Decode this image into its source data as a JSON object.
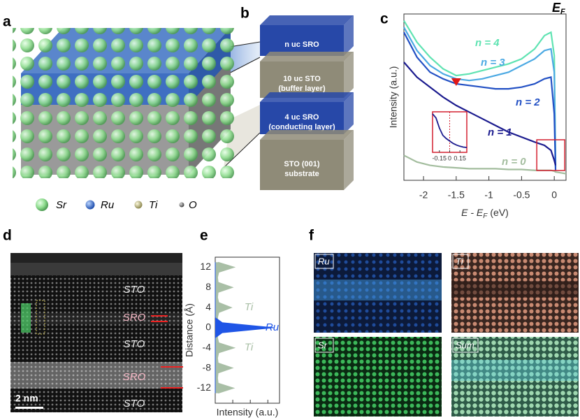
{
  "panels": [
    "a",
    "b",
    "c",
    "d",
    "e",
    "f"
  ],
  "legend": [
    {
      "label": "Sr",
      "color": "#8fdc8f"
    },
    {
      "label": "Ru",
      "color": "#2f6fd0"
    },
    {
      "label": "Ti",
      "color": "#c9c48a"
    },
    {
      "label": "O",
      "color": "#6c6c6c"
    }
  ],
  "stack": [
    {
      "lines": [
        "n uc SRO"
      ],
      "color": "#2748a8"
    },
    {
      "lines": [
        "10 uc STO",
        "(buffer layer)"
      ],
      "color": "#8f8b78"
    },
    {
      "lines": [
        "4 uc SRO",
        "(conducting layer)"
      ],
      "color": "#2748a8"
    },
    {
      "lines": [
        "STO (001)",
        "substrate"
      ],
      "color": "#8f8b78"
    }
  ],
  "stem": {
    "labels": [
      "STO",
      "SRO",
      "STO",
      "SRO",
      "STO"
    ],
    "scale_bar": "2 nm"
  },
  "maps": [
    "Ru",
    "Ti",
    "Sr",
    "Sum"
  ],
  "chart_data": [
    {
      "type": "line",
      "y_label": "Intensity (a.u.)",
      "x_label": {
        "main": "E - E",
        "sub": "F",
        "unit": "(eV)"
      },
      "fermi_label": {
        "main": "E",
        "sub": "F"
      },
      "xlim": [
        -2.3,
        0.18
      ],
      "ylim": [
        0,
        10
      ],
      "xticks": [
        -2,
        -1.5,
        -1,
        -0.5,
        0
      ],
      "x": [
        -2.3,
        -2.1,
        -1.9,
        -1.7,
        -1.5,
        -1.3,
        -1.1,
        -0.9,
        -0.7,
        -0.5,
        -0.3,
        -0.15,
        -0.05,
        0,
        0.02,
        0.1,
        0.18
      ],
      "series": [
        {
          "name": "n = 4",
          "color": "#5fe3b2",
          "values": [
            9.6,
            8.3,
            7.4,
            6.7,
            6.3,
            6.4,
            6.6,
            6.8,
            7.0,
            7.3,
            7.9,
            8.7,
            8.9,
            7.5,
            1,
            null,
            null
          ]
        },
        {
          "name": "n = 3",
          "color": "#4ba9e3",
          "values": [
            9.2,
            7.8,
            6.9,
            6.4,
            6.1,
            6.0,
            6.1,
            6.3,
            6.5,
            6.9,
            7.3,
            7.8,
            7.9,
            6.5,
            0.8,
            null,
            null
          ]
        },
        {
          "name": "n = 2",
          "color": "#2250c4",
          "values": [
            8.9,
            7.4,
            6.5,
            6.1,
            5.8,
            5.7,
            5.6,
            5.5,
            5.5,
            5.6,
            5.8,
            6.1,
            6.2,
            4,
            0.6,
            null,
            null
          ]
        },
        {
          "name": "n = 1",
          "color": "#1a1a8e",
          "values": [
            7.1,
            6.2,
            5.6,
            5.0,
            4.5,
            4.1,
            3.7,
            3.3,
            2.9,
            2.6,
            2.3,
            2.1,
            1.8,
            1.2,
            0.9,
            null,
            null
          ]
        },
        {
          "name": "n = 0",
          "color": "#a3bd9e",
          "values": [
            1.5,
            1.1,
            0.9,
            0.8,
            0.75,
            0.7,
            0.7,
            0.7,
            0.65,
            0.65,
            0.6,
            0.6,
            0.6,
            0.55,
            0.5,
            0.45,
            0.4
          ]
        }
      ],
      "marker_x": -1.5,
      "inset": {
        "xlim": [
          -0.25,
          0.25
        ],
        "ylim": [
          0,
          10
        ],
        "xticks": [
          -0.15,
          0,
          0.15
        ],
        "x": [
          -0.25,
          -0.2,
          -0.15,
          -0.1,
          -0.05,
          0,
          0.05,
          0.1,
          0.15,
          0.2,
          0.25
        ],
        "values": [
          9.5,
          8.5,
          6,
          4.2,
          3.4,
          2.8,
          2.2,
          1.8,
          1.5,
          1.3,
          1.2
        ],
        "color": "#1a1a8e"
      }
    },
    {
      "type": "area",
      "y_label": "Distance (Å)",
      "x_label": "Intensity (a.u.)",
      "xlim": [
        0,
        1.1
      ],
      "ylim": [
        -15,
        14
      ],
      "yticks": [
        12,
        8,
        4,
        0,
        -4,
        -8,
        -12
      ],
      "y": [
        -13,
        -12,
        -11,
        -10,
        -9,
        -8,
        -7,
        -6,
        -5,
        -4,
        -3,
        -2,
        -1,
        0,
        1,
        2,
        3,
        4,
        5,
        6,
        7,
        8,
        9,
        10,
        11,
        12,
        13
      ],
      "series": [
        {
          "name": "Ti",
          "color": "#a9bfa6",
          "values": [
            0.05,
            0.32,
            0.05,
            0.04,
            0.05,
            0.3,
            0.05,
            0.04,
            0.06,
            0.33,
            0.06,
            0.04,
            0.05,
            0.05,
            0.05,
            0.04,
            0.06,
            0.28,
            0.06,
            0.04,
            0.05,
            0.3,
            0.05,
            0.04,
            0.06,
            0.33,
            0.05
          ]
        },
        {
          "name": "Ru",
          "color": "#1f55e6",
          "values": [
            0,
            0,
            0,
            0,
            0,
            0,
            0,
            0,
            0,
            0,
            0,
            0,
            0.12,
            1.0,
            0.12,
            0,
            0,
            0,
            0,
            0,
            0,
            0,
            0,
            0,
            0,
            0,
            0
          ]
        }
      ]
    }
  ]
}
